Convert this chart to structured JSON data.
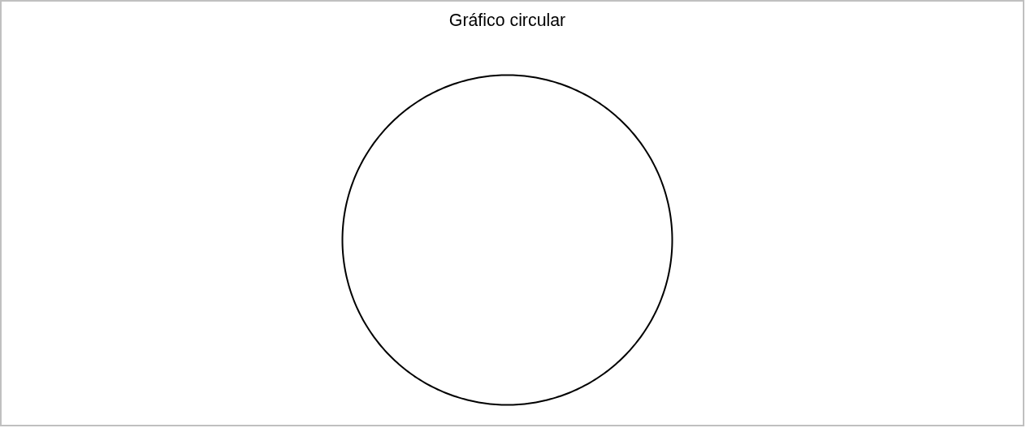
{
  "chart_data": {
    "type": "pie",
    "title": "Gráfico circular",
    "categories": [
      null
    ],
    "values": [
      100
    ],
    "colors": [
      "#ffffff"
    ]
  }
}
